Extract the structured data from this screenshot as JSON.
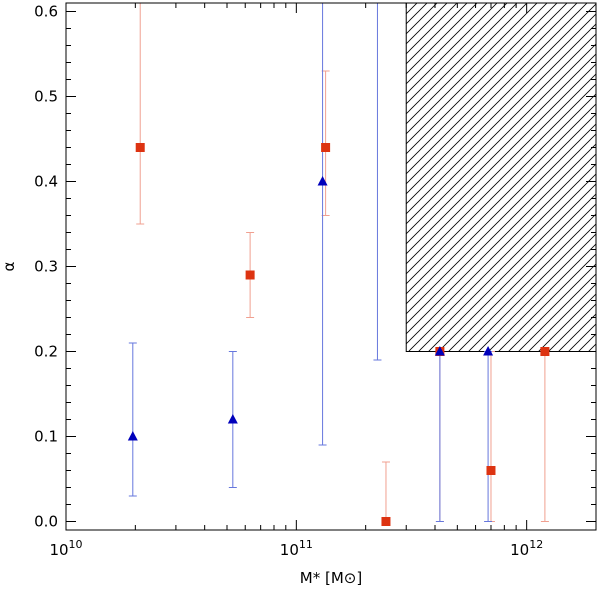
{
  "chart_data": {
    "type": "scatter",
    "title": "",
    "xlabel": "M* [M⊙]",
    "ylabel": "α",
    "xscale": "log",
    "xlim": [
      10000000000.0,
      2000000000000.0
    ],
    "ylim": [
      -0.01,
      0.61
    ],
    "x_ticks": [
      {
        "value": 10000000000.0,
        "base": "10",
        "exp": "10"
      },
      {
        "value": 100000000000.0,
        "base": "10",
        "exp": "11"
      },
      {
        "value": 1000000000000.0,
        "base": "10",
        "exp": "12"
      }
    ],
    "y_ticks": [
      {
        "value": 0.0,
        "label": "0.0"
      },
      {
        "value": 0.1,
        "label": "0.1"
      },
      {
        "value": 0.2,
        "label": "0.2"
      },
      {
        "value": 0.3,
        "label": "0.3"
      },
      {
        "value": 0.4,
        "label": "0.4"
      },
      {
        "value": 0.5,
        "label": "0.5"
      },
      {
        "value": 0.6,
        "label": "0.6"
      }
    ],
    "shaded_region": {
      "x_min": 300000000000.0,
      "x_max": 2000000000000.0,
      "y_min": 0.2,
      "y_max": 0.61,
      "pattern": "diagonal-hatch"
    },
    "series": [
      {
        "name": "red squares",
        "marker": "square",
        "color": "#dd3311",
        "errorbar_color": "#f0a090",
        "points": [
          {
            "x": 21000000000.0,
            "y": 0.44,
            "lo": 0.35,
            "hi": 0.61
          },
          {
            "x": 63000000000.0,
            "y": 0.29,
            "lo": 0.24,
            "hi": 0.34
          },
          {
            "x": 134000000000.0,
            "y": 0.44,
            "lo": 0.36,
            "hi": 0.53
          },
          {
            "x": 245000000000.0,
            "y": 0.0,
            "lo": 0.0,
            "hi": 0.07
          },
          {
            "x": 420000000000.0,
            "y": 0.2,
            "lo": 0.0,
            "hi": 0.2
          },
          {
            "x": 700000000000.0,
            "y": 0.06,
            "lo": 0.0,
            "hi": 0.2
          },
          {
            "x": 1200000000000.0,
            "y": 0.2,
            "lo": 0.0,
            "hi": 0.2
          }
        ]
      },
      {
        "name": "blue triangles",
        "marker": "triangle",
        "color": "#0000bb",
        "errorbar_color": "#6677dd",
        "points": [
          {
            "x": 19500000000.0,
            "y": 0.1,
            "lo": 0.03,
            "hi": 0.21
          },
          {
            "x": 53000000000.0,
            "y": 0.12,
            "lo": 0.04,
            "hi": 0.2
          },
          {
            "x": 130000000000.0,
            "y": 0.4,
            "lo": 0.09,
            "hi": 0.61
          },
          {
            "x": 225000000000.0,
            "y": null,
            "lo": 0.19,
            "hi": 0.61
          },
          {
            "x": 420000000000.0,
            "y": 0.2,
            "lo": 0.0,
            "hi": 0.2
          },
          {
            "x": 680000000000.0,
            "y": 0.2,
            "lo": 0.0,
            "hi": 0.2
          }
        ]
      }
    ]
  }
}
